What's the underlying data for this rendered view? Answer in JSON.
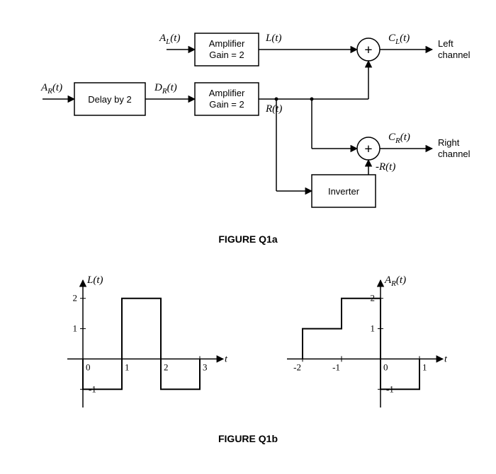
{
  "blockDiagram": {
    "blocks": {
      "delay": {
        "line1": "Delay by 2"
      },
      "ampTop": {
        "line1": "Amplifier",
        "line2": "Gain = 2"
      },
      "ampBot": {
        "line1": "Amplifier",
        "line2": "Gain = 2"
      },
      "inverter": {
        "line1": "Inverter"
      }
    },
    "signals": {
      "AR": "A_R(t)",
      "AL": "A_L(t)",
      "DR": "D_R(t)",
      "L": "L(t)",
      "R": "R(t)",
      "negR": "-R(t)",
      "CL": "C_L(t)",
      "CR": "C_R(t)"
    },
    "outputs": {
      "left": {
        "l1": "Left",
        "l2": "channel"
      },
      "right": {
        "l1": "Right",
        "l2": "channel"
      }
    },
    "summerGlyph": "+",
    "caption": "FIGURE Q1a",
    "style": {
      "stroke": "#000000",
      "strokeWidth": 1.5,
      "fill": "#ffffff",
      "blockW": 90,
      "blockH": 46,
      "summerR": 16
    }
  },
  "plots": {
    "caption": "FIGURE Q1b",
    "axisStroke": "#000000",
    "axisWidth": 1.5,
    "traceStroke": "#000000",
    "traceWidth": 2,
    "left": {
      "title": "L(t)",
      "xAxisLabel": "t",
      "xTicks": [
        0,
        1,
        2,
        3
      ],
      "yTicks": [
        -1,
        1,
        2
      ],
      "xRange": [
        -0.4,
        3.6
      ],
      "yRange": [
        -1.6,
        2.6
      ],
      "trace": [
        [
          0,
          0
        ],
        [
          0,
          -1
        ],
        [
          1,
          -1
        ],
        [
          1,
          2
        ],
        [
          2,
          2
        ],
        [
          2,
          -1
        ],
        [
          3,
          -1
        ],
        [
          3,
          0
        ]
      ]
    },
    "right": {
      "title": "A_R(t)",
      "xAxisLabel": "t",
      "xTicks": [
        -2,
        -1,
        0,
        1
      ],
      "yTicks": [
        -1,
        1,
        2
      ],
      "xRange": [
        -2.4,
        1.6
      ],
      "yRange": [
        -1.6,
        2.6
      ],
      "trace": [
        [
          -2,
          0
        ],
        [
          -2,
          1
        ],
        [
          -1,
          1
        ],
        [
          -1,
          2
        ],
        [
          0,
          2
        ],
        [
          0,
          -1
        ],
        [
          1,
          -1
        ],
        [
          1,
          0
        ]
      ]
    }
  }
}
